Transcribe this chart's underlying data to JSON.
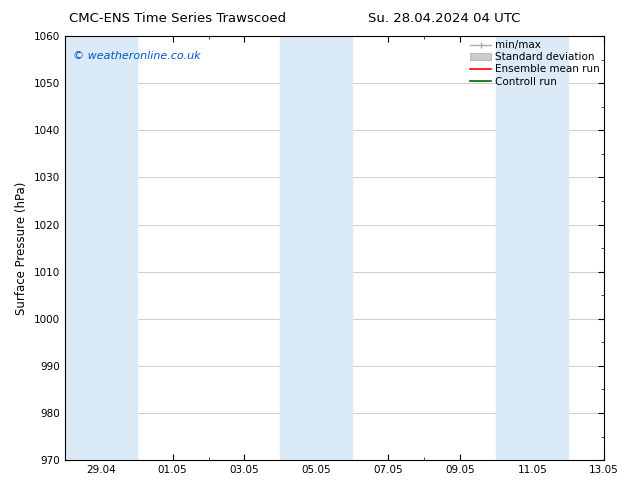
{
  "title_left": "CMC-ENS Time Series Trawscoed",
  "title_right": "Su. 28.04.2024 04 UTC",
  "ylabel": "Surface Pressure (hPa)",
  "ylim": [
    970,
    1060
  ],
  "yticks": [
    970,
    980,
    990,
    1000,
    1010,
    1020,
    1030,
    1040,
    1050,
    1060
  ],
  "xtick_labels": [
    "29.04",
    "01.05",
    "03.05",
    "05.05",
    "07.05",
    "09.05",
    "11.05",
    "13.05"
  ],
  "watermark": "© weatheronline.co.uk",
  "watermark_color": "#0055cc",
  "shade_color": "#daeaf7",
  "bg_color": "#ffffff",
  "plot_bg_color": "#ffffff",
  "grid_color": "#bbbbbb",
  "tick_label_fontsize": 7.5,
  "axis_label_fontsize": 8.5,
  "title_fontsize": 9.5,
  "legend_fontsize": 7.5
}
